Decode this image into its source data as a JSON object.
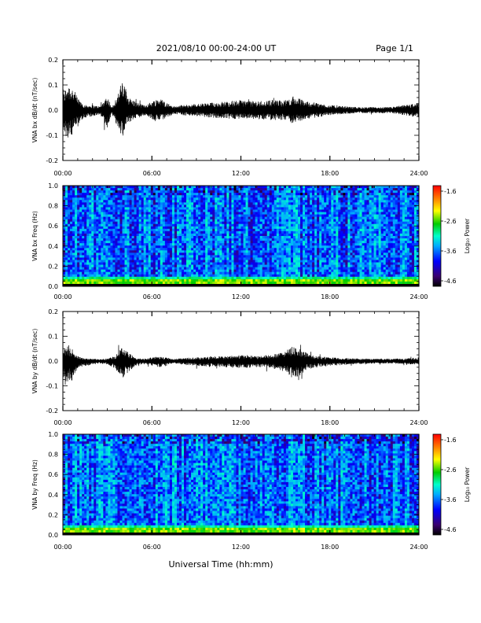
{
  "header": {
    "title": "2021/08/10  00:00-24:00 UT",
    "page": "Page 1/1"
  },
  "footer": {
    "xlabel": "Universal Time (hh:mm)"
  },
  "colors": {
    "trace": "#000000",
    "colormap": [
      "#000000",
      "#3a0070",
      "#0000ff",
      "#00aaff",
      "#00ffcc",
      "#00cc00",
      "#ffff00",
      "#ff8000",
      "#ff0000"
    ]
  },
  "chart_data": [
    {
      "id": "bx-waveform",
      "type": "line",
      "ylabel": "VNA bx dB/dt (nT/sec)",
      "xlim_hours": [
        0,
        24
      ],
      "ylim": [
        -0.2,
        0.2
      ],
      "x_tick_labels": [
        "00:00",
        "06:00",
        "12:00",
        "18:00",
        "24:00"
      ],
      "y_tick_labels": [
        "0.2",
        "0.1",
        "0.0",
        "-0.1",
        "-0.2"
      ],
      "envelope": {
        "x_hours": [
          0,
          0.3,
          0.6,
          1,
          1.5,
          2,
          2.5,
          3,
          3.3,
          3.8,
          4,
          4.5,
          5,
          5.5,
          6,
          6.5,
          7,
          7.5,
          8,
          9,
          10,
          11,
          12,
          13,
          14,
          14.5,
          15,
          15.5,
          16,
          16.5,
          17,
          18,
          19,
          20,
          21,
          22,
          23,
          24
        ],
        "upper": [
          0.06,
          0.11,
          0.1,
          0.05,
          0.02,
          0.02,
          0.015,
          0.06,
          0.01,
          0.08,
          0.12,
          0.05,
          0.03,
          0.02,
          0.035,
          0.05,
          0.03,
          0.015,
          0.02,
          0.025,
          0.03,
          0.035,
          0.04,
          0.035,
          0.04,
          0.04,
          0.04,
          0.055,
          0.045,
          0.035,
          0.03,
          0.02,
          0.015,
          0.012,
          0.012,
          0.012,
          0.02,
          0.03
        ],
        "lower": [
          -0.08,
          -0.12,
          -0.11,
          -0.05,
          -0.03,
          -0.025,
          -0.02,
          -0.07,
          -0.02,
          -0.08,
          -0.11,
          -0.05,
          -0.03,
          -0.02,
          -0.035,
          -0.05,
          -0.03,
          -0.015,
          -0.02,
          -0.025,
          -0.03,
          -0.035,
          -0.035,
          -0.035,
          -0.04,
          -0.04,
          -0.04,
          -0.055,
          -0.045,
          -0.035,
          -0.03,
          -0.02,
          -0.015,
          -0.012,
          -0.012,
          -0.012,
          -0.02,
          -0.03
        ]
      }
    },
    {
      "id": "bx-spectrogram",
      "type": "heatmap",
      "ylabel": "VNA bx Freq (Hz)",
      "xlim_hours": [
        0,
        24
      ],
      "ylim": [
        0.0,
        1.0
      ],
      "x_tick_labels": [
        "00:00",
        "06:00",
        "12:00",
        "18:00",
        "24:00"
      ],
      "y_tick_labels": [
        "1.0",
        "0.8",
        "0.6",
        "0.4",
        "0.2",
        "0.0"
      ],
      "colorbar": {
        "label": "Log₁₀ Power",
        "range": [
          -4.6,
          -1.6
        ],
        "tick_labels": [
          "-1.6",
          "-2.6",
          "-3.6",
          "-4.6"
        ]
      }
    },
    {
      "id": "by-waveform",
      "type": "line",
      "ylabel": "VNA by dB/dt (nT/sec)",
      "xlim_hours": [
        0,
        24
      ],
      "ylim": [
        -0.2,
        0.2
      ],
      "x_tick_labels": [
        "00:00",
        "06:00",
        "12:00",
        "18:00",
        "24:00"
      ],
      "y_tick_labels": [
        "0.2",
        "0.1",
        "0.0",
        "-0.1",
        "-0.2"
      ],
      "envelope": {
        "x_hours": [
          0,
          0.3,
          0.6,
          1,
          1.5,
          2,
          2.5,
          3,
          3.5,
          4,
          4.5,
          5,
          5.5,
          6,
          6.5,
          7,
          7.5,
          8,
          9,
          10,
          11,
          12,
          13,
          14,
          14.5,
          15,
          15.5,
          16,
          16.5,
          17,
          18,
          19,
          20,
          21,
          22,
          23,
          24
        ],
        "upper": [
          0.04,
          0.06,
          0.05,
          0.02,
          0.01,
          0.01,
          0.008,
          0.01,
          0.02,
          0.06,
          0.03,
          0.01,
          0.01,
          0.015,
          0.02,
          0.015,
          0.008,
          0.012,
          0.015,
          0.02,
          0.02,
          0.025,
          0.02,
          0.025,
          0.03,
          0.04,
          0.06,
          0.05,
          0.03,
          0.02,
          0.015,
          0.012,
          0.01,
          0.01,
          0.01,
          0.01,
          0.015
        ],
        "lower": [
          -0.06,
          -0.09,
          -0.08,
          -0.03,
          -0.02,
          -0.015,
          -0.01,
          -0.015,
          -0.03,
          -0.07,
          -0.04,
          -0.015,
          -0.01,
          -0.02,
          -0.025,
          -0.02,
          -0.01,
          -0.015,
          -0.02,
          -0.025,
          -0.025,
          -0.03,
          -0.025,
          -0.03,
          -0.035,
          -0.045,
          -0.07,
          -0.06,
          -0.035,
          -0.025,
          -0.02,
          -0.015,
          -0.012,
          -0.01,
          -0.01,
          -0.012,
          -0.015
        ]
      }
    },
    {
      "id": "by-spectrogram",
      "type": "heatmap",
      "ylabel": "VNA by Freq (Hz)",
      "xlim_hours": [
        0,
        24
      ],
      "ylim": [
        0.0,
        1.0
      ],
      "x_tick_labels": [
        "00:00",
        "06:00",
        "12:00",
        "18:00",
        "24:00"
      ],
      "y_tick_labels": [
        "1.0",
        "0.8",
        "0.6",
        "0.4",
        "0.2",
        "0.0"
      ],
      "colorbar": {
        "label": "Log₁₀ Power",
        "range": [
          -4.6,
          -1.6
        ],
        "tick_labels": [
          "-1.6",
          "-2.6",
          "-3.6",
          "-4.6"
        ]
      }
    }
  ]
}
